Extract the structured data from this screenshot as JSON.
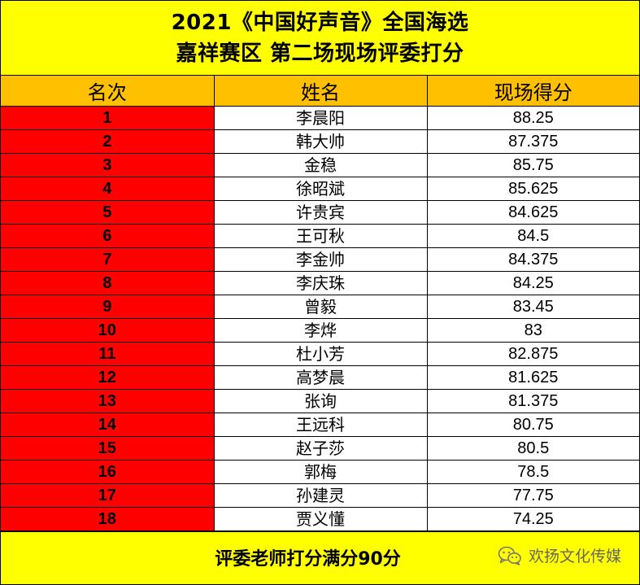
{
  "title": {
    "line1": "2021《中国好声音》全国海选",
    "line2": "嘉祥赛区 第二场现场评委打分"
  },
  "table": {
    "headers": [
      "名次",
      "姓名",
      "现场得分"
    ],
    "rows": [
      {
        "rank": "1",
        "name": "李晨阳",
        "score": "88.25"
      },
      {
        "rank": "2",
        "name": "韩大帅",
        "score": "87.375"
      },
      {
        "rank": "3",
        "name": "金稳",
        "score": "85.75"
      },
      {
        "rank": "4",
        "name": "徐昭斌",
        "score": "85.625"
      },
      {
        "rank": "5",
        "name": "许贵宾",
        "score": "84.625"
      },
      {
        "rank": "6",
        "name": "王可秋",
        "score": "84.5"
      },
      {
        "rank": "7",
        "name": "李金帅",
        "score": "84.375"
      },
      {
        "rank": "8",
        "name": "李庆珠",
        "score": "84.25"
      },
      {
        "rank": "9",
        "name": "曾毅",
        "score": "83.45"
      },
      {
        "rank": "10",
        "name": "李烨",
        "score": "83"
      },
      {
        "rank": "11",
        "name": "杜小芳",
        "score": "82.875"
      },
      {
        "rank": "12",
        "name": "高梦晨",
        "score": "81.625"
      },
      {
        "rank": "13",
        "name": "张询",
        "score": "81.375"
      },
      {
        "rank": "14",
        "name": "王远科",
        "score": "80.75"
      },
      {
        "rank": "15",
        "name": "赵子莎",
        "score": "80.5"
      },
      {
        "rank": "16",
        "name": "郭梅",
        "score": "78.5"
      },
      {
        "rank": "17",
        "name": "孙建灵",
        "score": "77.75"
      },
      {
        "rank": "18",
        "name": "贾义懂",
        "score": "74.25"
      }
    ]
  },
  "footer": {
    "note": "评委老师打分满分90分",
    "watermark": "欢扬文化传媒",
    "watermark_icon": "wechat-icon"
  },
  "colors": {
    "title_bg": "#ffff00",
    "header_bg": "#ffc000",
    "rank_bg": "#ff0000",
    "cell_bg": "#ffffff"
  }
}
